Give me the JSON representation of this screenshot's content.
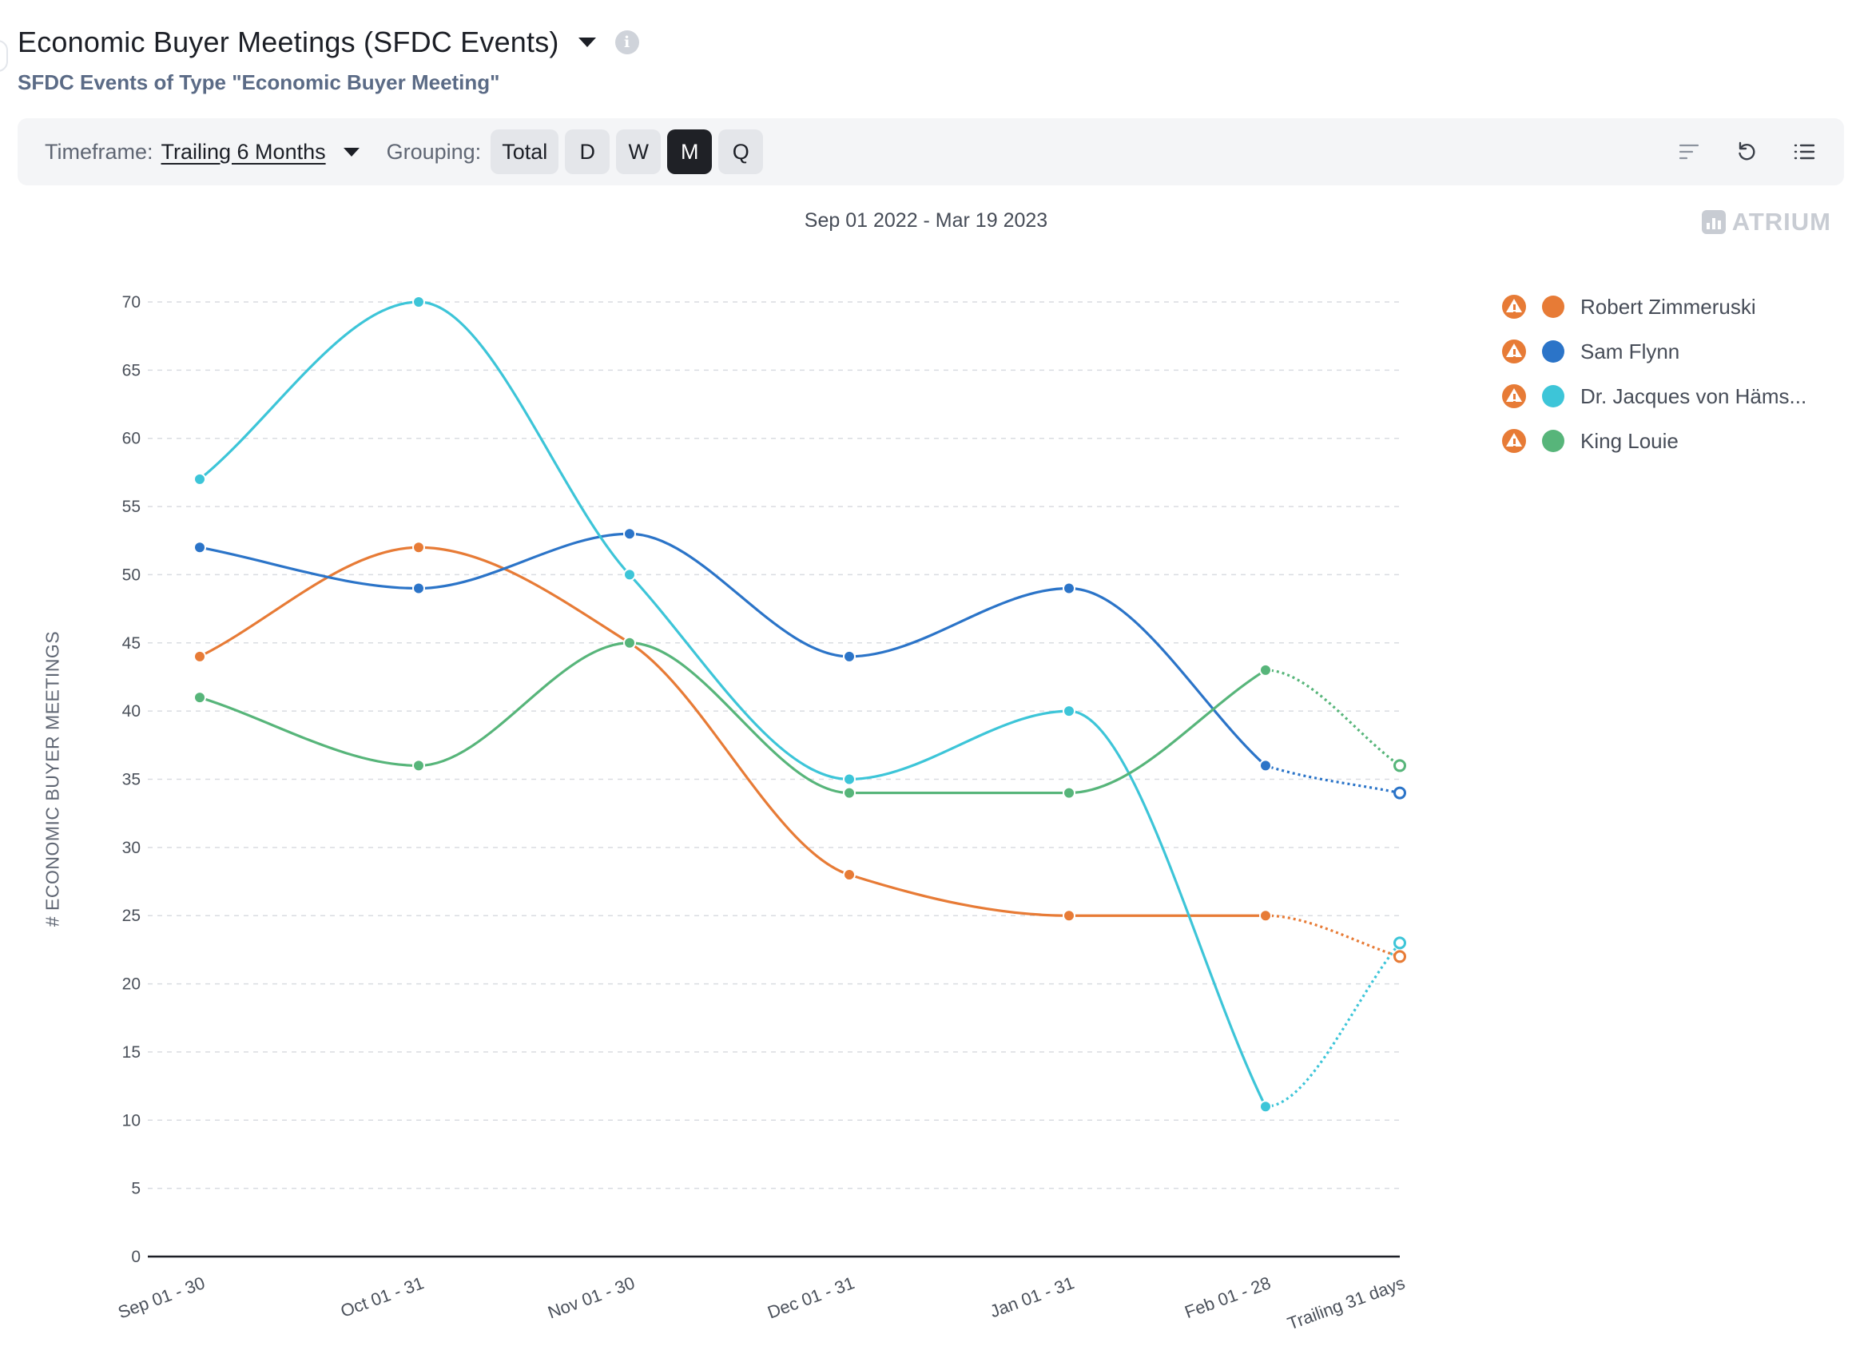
{
  "header": {
    "title": "Economic Buyer Meetings (SFDC Events)",
    "subtitle": "SFDC Events of Type \"Economic Buyer Meeting\""
  },
  "toolbar": {
    "timeframe_label": "Timeframe:",
    "timeframe_value": "Trailing 6 Months",
    "grouping_label": "Grouping:",
    "grouping_options": [
      "Total",
      "D",
      "W",
      "M",
      "Q"
    ],
    "grouping_selected": "M",
    "icons": [
      "sort-icon",
      "reset-icon",
      "list-icon"
    ]
  },
  "date_range": "Sep 01 2022 - Mar 19 2023",
  "brand": "ATRIUM",
  "colors": {
    "orange": "#e77b36",
    "blue": "#2b74c8",
    "cyan": "#3dc5d8",
    "green": "#57b57a"
  },
  "chart_data": {
    "type": "line",
    "title": "",
    "xlabel": "",
    "ylabel": "# ECONOMIC BUYER MEETINGS",
    "categories": [
      "Sep 01 - 30",
      "Oct 01 - 31",
      "Nov 01 - 30",
      "Dec 01 - 31",
      "Jan 01 - 31",
      "Feb 01 - 28",
      "Trailing 31 days"
    ],
    "ylim": [
      0,
      70
    ],
    "yticks": [
      0,
      5,
      10,
      15,
      20,
      25,
      30,
      35,
      40,
      45,
      50,
      55,
      60,
      65,
      70
    ],
    "grid": true,
    "legend_position": "right",
    "dotted_last_segment": true,
    "series": [
      {
        "name": "Robert Zimmeruski",
        "color": "#e77b36",
        "values": [
          44,
          52,
          45,
          28,
          25,
          25,
          22
        ]
      },
      {
        "name": "Sam Flynn",
        "color": "#2b74c8",
        "values": [
          52,
          49,
          53,
          44,
          49,
          36,
          34
        ]
      },
      {
        "name": "Dr. Jacques von Häms...",
        "color": "#3dc5d8",
        "values": [
          57,
          70,
          50,
          35,
          40,
          11,
          23
        ]
      },
      {
        "name": "King Louie",
        "color": "#57b57a",
        "values": [
          41,
          36,
          45,
          34,
          34,
          43,
          36
        ]
      }
    ]
  }
}
